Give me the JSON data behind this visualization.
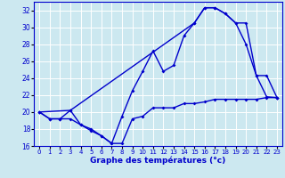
{
  "xlabel": "Graphe des températures (°c)",
  "bg_color": "#cce8f0",
  "grid_color": "#ffffff",
  "line_color": "#0000cc",
  "xmin": -0.5,
  "xmax": 23.5,
  "ymin": 16,
  "ymax": 33,
  "yticks": [
    16,
    18,
    20,
    22,
    24,
    26,
    28,
    30,
    32
  ],
  "xticks": [
    0,
    1,
    2,
    3,
    4,
    5,
    6,
    7,
    8,
    9,
    10,
    11,
    12,
    13,
    14,
    15,
    16,
    17,
    18,
    19,
    20,
    21,
    22,
    23
  ],
  "curve_min_x": [
    0,
    1,
    2,
    3,
    4,
    5,
    6,
    7,
    8,
    9,
    10,
    11,
    12,
    13,
    14,
    15,
    16,
    17,
    18,
    19,
    20,
    21,
    22,
    23
  ],
  "curve_min_y": [
    20.0,
    19.2,
    19.2,
    19.2,
    18.5,
    17.8,
    17.2,
    16.3,
    16.3,
    19.2,
    19.5,
    20.5,
    20.5,
    20.5,
    21.0,
    21.0,
    21.2,
    21.5,
    21.5,
    21.5,
    21.5,
    21.5,
    21.7,
    21.7
  ],
  "curve_main_x": [
    0,
    1,
    2,
    3,
    4,
    5,
    6,
    7,
    8,
    9,
    10,
    11,
    12,
    13,
    14,
    15,
    16,
    17,
    18,
    19,
    20,
    21,
    22,
    23
  ],
  "curve_main_y": [
    20.0,
    19.2,
    19.2,
    20.2,
    18.5,
    18.0,
    17.2,
    16.3,
    19.5,
    22.5,
    24.8,
    27.2,
    24.8,
    25.5,
    29.0,
    30.5,
    32.3,
    32.3,
    31.6,
    30.5,
    28.0,
    24.3,
    21.8,
    21.7
  ],
  "curve_top_x": [
    0,
    3,
    15,
    16,
    17,
    18,
    19,
    20,
    21,
    22,
    23
  ],
  "curve_top_y": [
    20.0,
    20.2,
    30.5,
    32.3,
    32.3,
    31.6,
    30.5,
    30.5,
    24.3,
    24.3,
    21.7
  ]
}
